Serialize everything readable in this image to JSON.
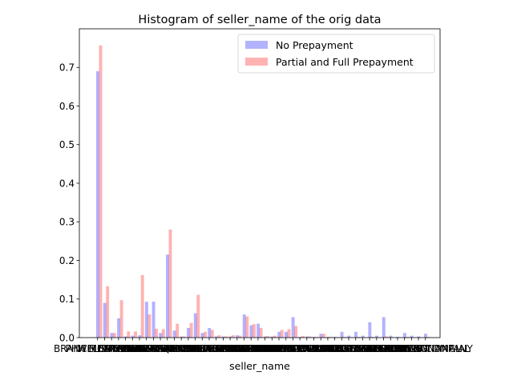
{
  "chart_data": {
    "type": "bar",
    "title": "Histogram of seller_name of the orig data",
    "xlabel": "seller_name",
    "ylabel": "",
    "ylim": [
      0,
      0.8
    ],
    "yticks": [
      0.0,
      0.1,
      0.2,
      0.3,
      0.4,
      0.5,
      0.6,
      0.7
    ],
    "grid": false,
    "legend_position": "top-right",
    "categories": [
      "BRANCH BANKING",
      "PHH MORTGAGE",
      "WELLS FARGO",
      "FIFTH THIRD",
      "SUNTRUST",
      "CHASE",
      "NATIONSTAR",
      "FLAGSTAR",
      "PNC BANK",
      "CITIMORTGAGE",
      "BANK OF AMERICA",
      "US BANK",
      "GMAC MORTGAGE",
      "USAA",
      "PROVIDENT FUNDING",
      "QUICKEN LOANS",
      "AMERIHOME",
      "FRANKLIN AMERICAN",
      "CALIBER HOME",
      "STEARNS LENDING",
      "GUARANTEED RATE",
      "UNITED SHORE",
      "LOANDEPOT",
      "PRIMELENDING",
      "HOMEWARD",
      "NEW RESIDENTIAL",
      "PENNYMAC",
      "FREEDOM MORTGAGE",
      "ACADEMY",
      "CROSSCOUNTRY",
      "FINANCE OF AMERICA",
      "TRUIST",
      "NEWREZ",
      "ROCKET MORTGAGE",
      "FAIRWAY",
      "GUILD MORTGAGE",
      "MOVEMENT MORTGAGE",
      "ANGEL OAK",
      "BROKER SOLUTIONS",
      "CMG",
      "PLAZA HOME",
      "NATIONS LENDING",
      "MR COOPER",
      "LAKEVIEW",
      "TRUSTCO",
      "SECURITY NATIONAL",
      "CARDINAL FINANCIAL",
      "CITIZENS COMPANY"
    ],
    "series": [
      {
        "name": "No Prepayment",
        "color": "#0000ff",
        "values": [
          0.69,
          0.09,
          0.012,
          0.05,
          0.003,
          0.005,
          0.006,
          0.093,
          0.093,
          0.012,
          0.215,
          0.018,
          0.003,
          0.025,
          0.063,
          0.012,
          0.025,
          0.003,
          0.003,
          0.003,
          0.006,
          0.06,
          0.032,
          0.036,
          0.003,
          0.003,
          0.015,
          0.015,
          0.053,
          0.002,
          0.003,
          0.002,
          0.01,
          0.002,
          0.002,
          0.015,
          0.005,
          0.015,
          0.005,
          0.04,
          0.005,
          0.053,
          0.005,
          0.002,
          0.012,
          0.005,
          0.003,
          0.01
        ]
      },
      {
        "name": "Partial and Full Prepayment",
        "color": "#ff0000",
        "values": [
          0.757,
          0.133,
          0.012,
          0.097,
          0.016,
          0.016,
          0.162,
          0.06,
          0.023,
          0.022,
          0.28,
          0.036,
          0.003,
          0.038,
          0.111,
          0.015,
          0.02,
          0.006,
          0.003,
          0.006,
          0.005,
          0.055,
          0.035,
          0.025,
          0.004,
          0.005,
          0.02,
          0.022,
          0.03,
          0.004,
          0.003,
          0.002,
          0.01,
          0.002,
          0.001,
          0.002,
          0.001,
          0.002,
          0.001,
          0.002,
          0.001,
          0.003,
          0.001,
          0.001,
          0.002,
          0.001,
          0.001,
          0.002
        ]
      }
    ]
  }
}
